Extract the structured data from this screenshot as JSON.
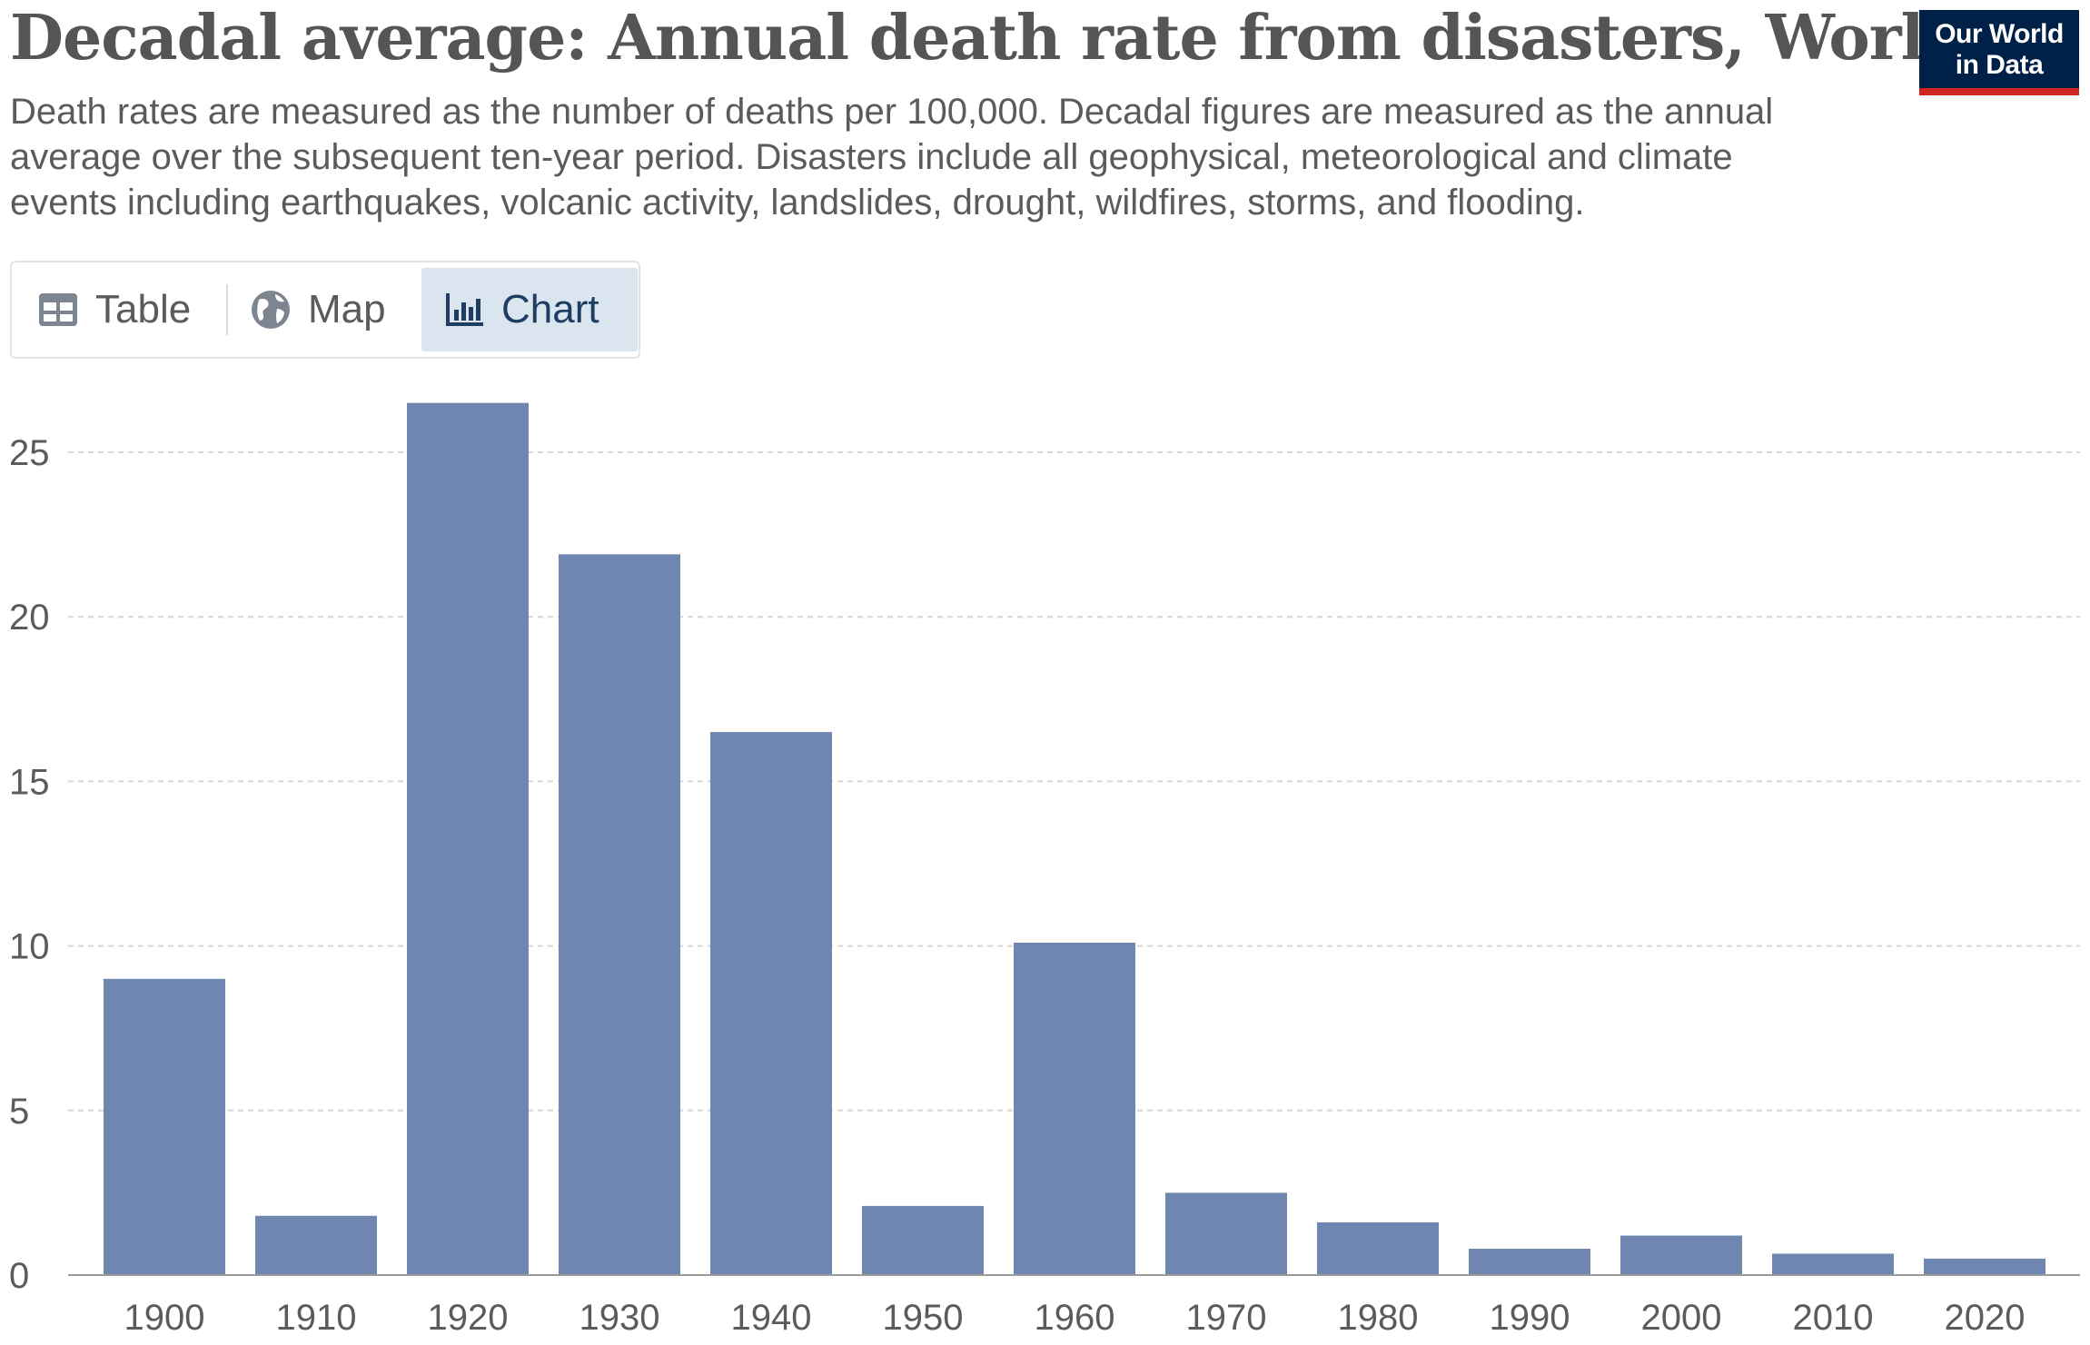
{
  "header": {
    "title": "Decadal average: Annual death rate from disasters, World",
    "subtitle": "Death rates are measured as the number of deaths per 100,000. Decadal figures are measured as the annual average over the subsequent ten-year period. Disasters include all geophysical, meteorological and climate events including earthquakes, volcanic activity, landslides, drought, wildfires, storms, and flooding."
  },
  "logo": {
    "line1": "Our World",
    "line2": "in Data"
  },
  "tabs": [
    {
      "label": "Table",
      "icon": "table-icon",
      "active": false
    },
    {
      "label": "Map",
      "icon": "globe-icon",
      "active": false
    },
    {
      "label": "Chart",
      "icon": "bar-chart-icon",
      "active": true
    }
  ],
  "colors": {
    "bar": "#6f87b0",
    "grid": "#d6d6d6",
    "axis_text": "#5b5b5b",
    "logo_bg": "#002147",
    "logo_accent": "#ce261e",
    "tab_active_bg": "#dbe5f0"
  },
  "chart_data": {
    "type": "bar",
    "categories": [
      "1900",
      "1910",
      "1920",
      "1930",
      "1940",
      "1950",
      "1960",
      "1970",
      "1980",
      "1990",
      "2000",
      "2010",
      "2020"
    ],
    "values": [
      9.0,
      1.8,
      26.5,
      21.9,
      16.5,
      2.1,
      10.1,
      2.5,
      1.6,
      0.8,
      1.2,
      0.65,
      0.5
    ],
    "yticks": [
      0,
      5,
      10,
      15,
      20,
      25
    ],
    "ylim": [
      0,
      27
    ],
    "grid": true,
    "xlabel": "",
    "ylabel": ""
  }
}
